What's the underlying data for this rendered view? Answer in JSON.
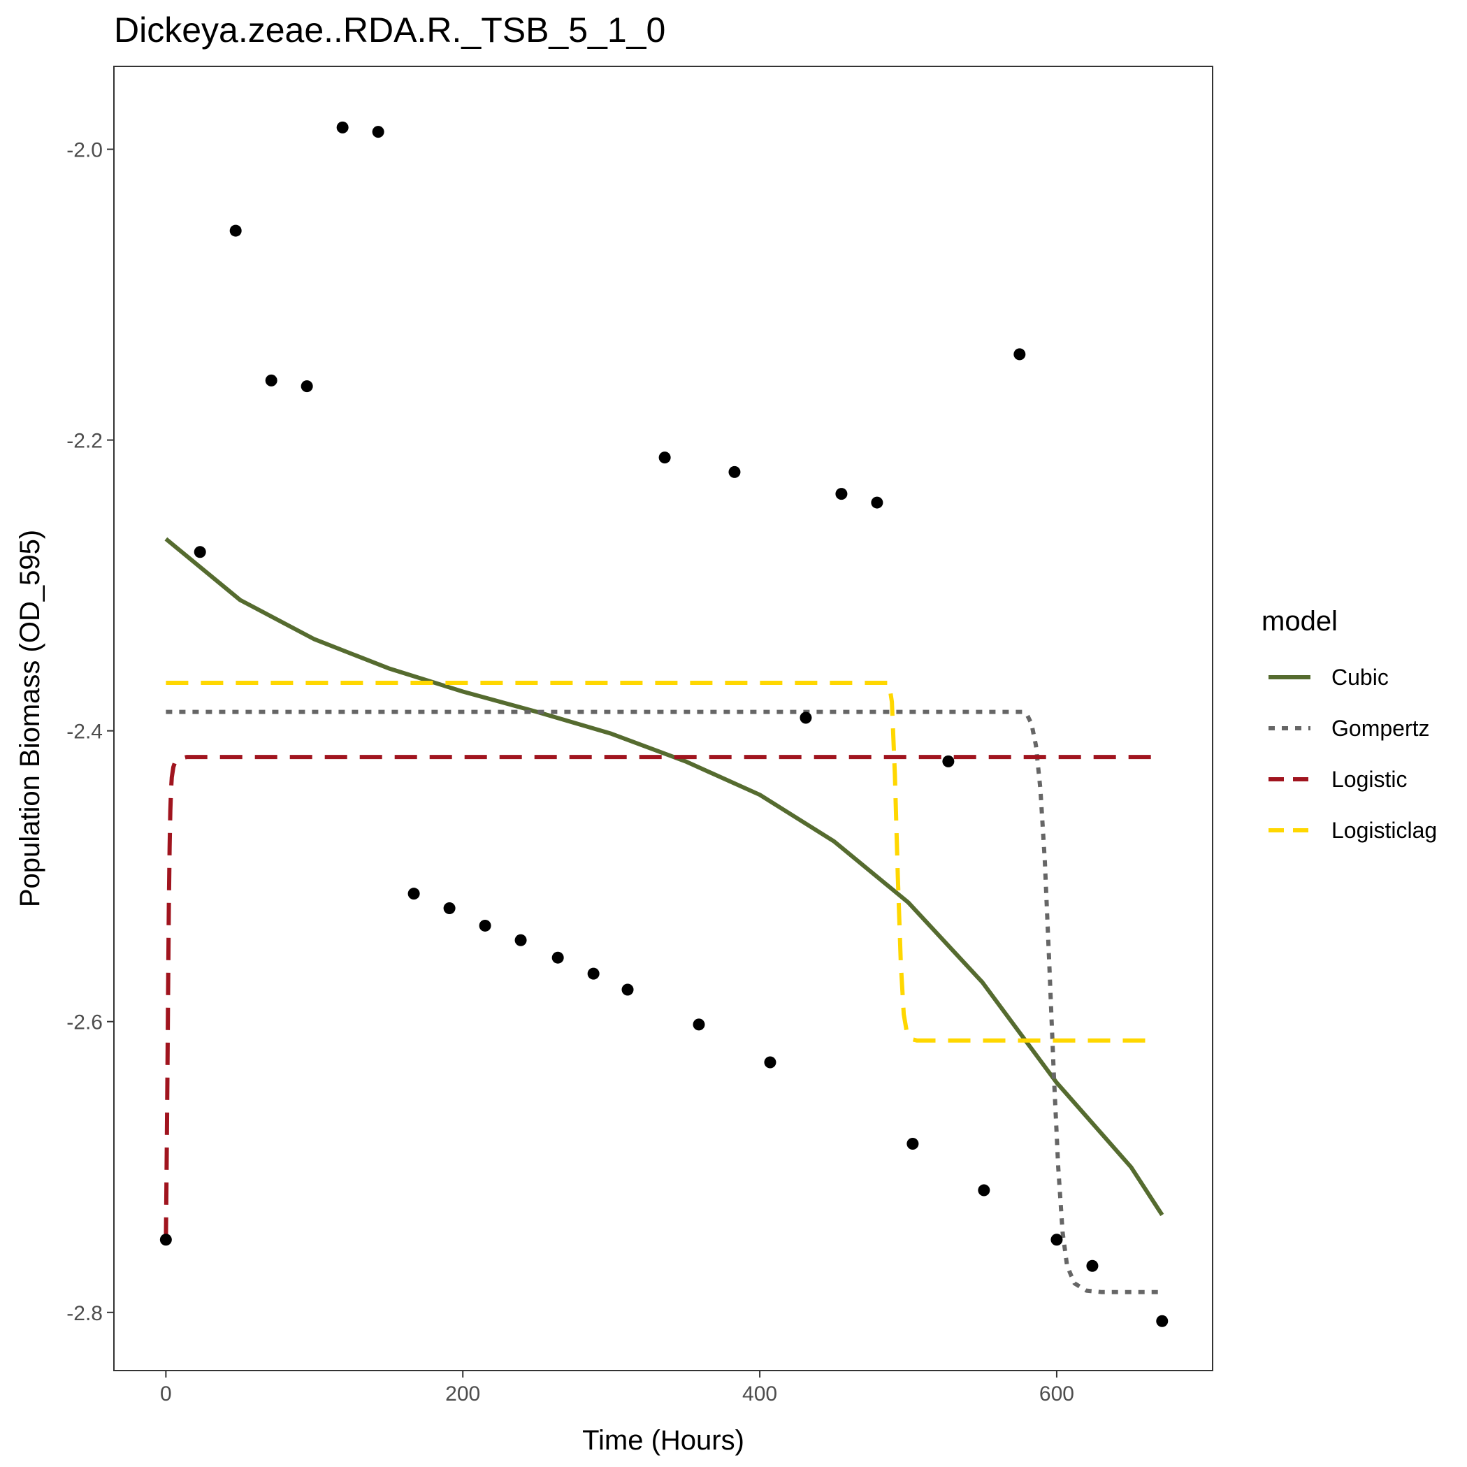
{
  "chart_data": {
    "type": "scatter",
    "title": "Dickeya.zeae..RDA.R._TSB_5_1_0",
    "xlabel": "Time (Hours)",
    "ylabel": "Population Biomass (OD_595)",
    "xlim": [
      -35,
      705
    ],
    "ylim": [
      -2.84,
      -1.943
    ],
    "xticks": [
      0,
      200,
      400,
      600
    ],
    "xtick_labels": [
      "0",
      "200",
      "400",
      "600"
    ],
    "yticks": [
      -2.8,
      -2.6,
      -2.4,
      -2.2,
      -2.0
    ],
    "ytick_labels": [
      "-2.8",
      "-2.6",
      "-2.4",
      "-2.2",
      "-2.0"
    ],
    "grid": false,
    "legend": {
      "title": "model",
      "position": "right"
    },
    "points": {
      "x": [
        0,
        23,
        47,
        71,
        95,
        119,
        143,
        167,
        191,
        215,
        239,
        264,
        288,
        311,
        336,
        359,
        383,
        407,
        431,
        455,
        479,
        503,
        527,
        551,
        575,
        600,
        624,
        671
      ],
      "y": [
        -2.75,
        -2.277,
        -2.056,
        -2.159,
        -2.163,
        -1.985,
        -1.988,
        -2.512,
        -2.522,
        -2.534,
        -2.544,
        -2.556,
        -2.567,
        -2.578,
        -2.212,
        -2.602,
        -2.222,
        -2.628,
        -2.391,
        -2.237,
        -2.243,
        -2.684,
        -2.421,
        -2.716,
        -2.141,
        -2.75,
        -2.768,
        -2.806
      ],
      "color": "#000000"
    },
    "series": [
      {
        "name": "Cubic",
        "color": "#556b2f",
        "dash": "solid",
        "x": [
          0,
          50,
          100,
          150,
          200,
          250,
          300,
          350,
          400,
          450,
          500,
          550,
          600,
          650,
          671
        ],
        "y": [
          -2.268,
          -2.31,
          -2.337,
          -2.357,
          -2.373,
          -2.387,
          -2.402,
          -2.421,
          -2.444,
          -2.476,
          -2.518,
          -2.573,
          -2.642,
          -2.7,
          -2.733
        ]
      },
      {
        "name": "Gompertz",
        "color": "#666666",
        "dash": "dotted",
        "x": [
          0,
          577,
          580,
          583,
          586,
          589,
          592,
          595,
          598,
          601,
          604,
          607,
          612,
          620,
          630,
          671
        ],
        "y": [
          -2.387,
          -2.387,
          -2.389,
          -2.395,
          -2.41,
          -2.44,
          -2.49,
          -2.56,
          -2.635,
          -2.7,
          -2.745,
          -2.768,
          -2.78,
          -2.785,
          -2.786,
          -2.786
        ]
      },
      {
        "name": "Logistic",
        "color": "#a0141e",
        "dash": "dashed",
        "x": [
          0,
          0.5,
          1,
          1.5,
          2,
          2.5,
          3,
          3.5,
          4,
          5,
          6,
          8,
          10,
          14,
          671
        ],
        "y": [
          -2.75,
          -2.7,
          -2.64,
          -2.58,
          -2.52,
          -2.48,
          -2.455,
          -2.44,
          -2.432,
          -2.425,
          -2.422,
          -2.42,
          -2.419,
          -2.418,
          -2.418
        ]
      },
      {
        "name": "Logisticlag",
        "color": "#ffd700",
        "dash": "dashed",
        "x": [
          0,
          487,
          489,
          491,
          493,
          495,
          497,
          499,
          502,
          506,
          660
        ],
        "y": [
          -2.367,
          -2.367,
          -2.38,
          -2.43,
          -2.5,
          -2.56,
          -2.595,
          -2.607,
          -2.612,
          -2.613,
          -2.613
        ]
      }
    ]
  }
}
